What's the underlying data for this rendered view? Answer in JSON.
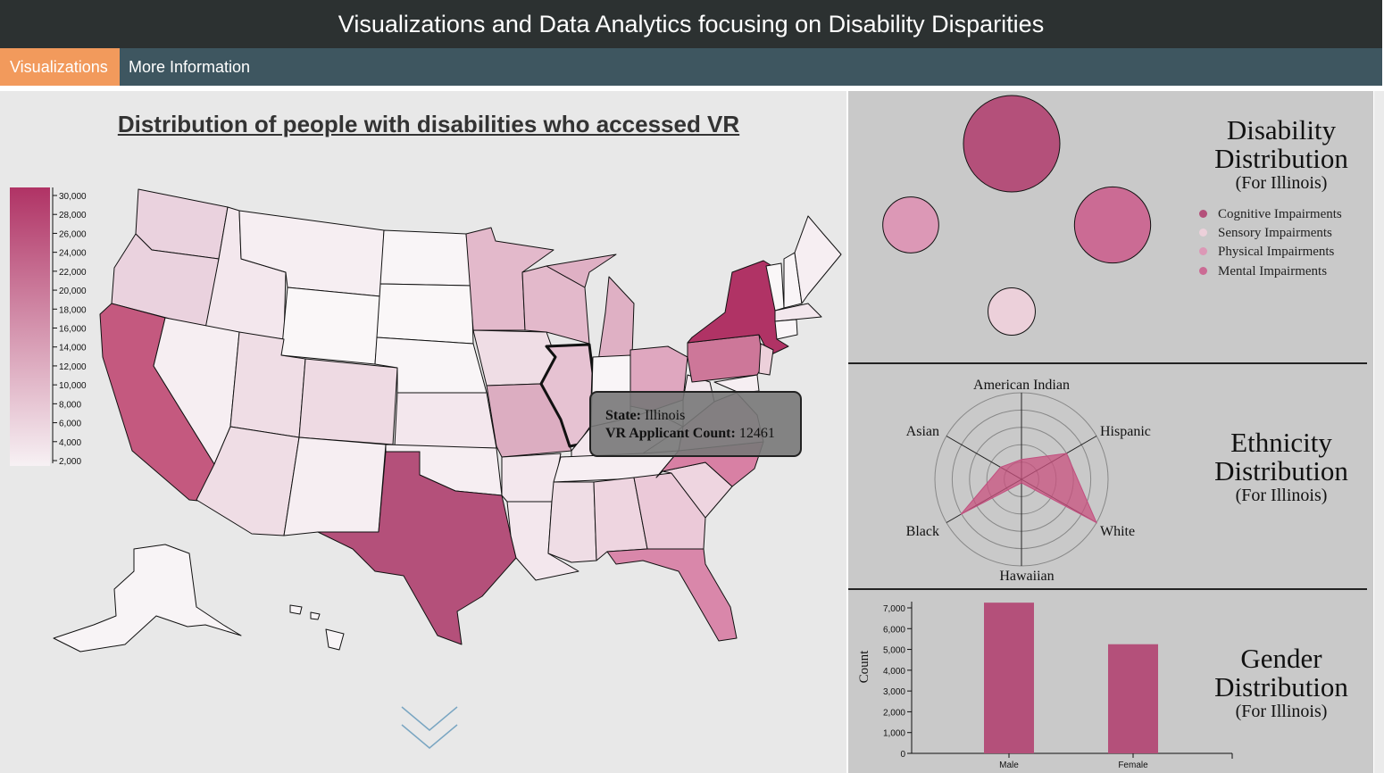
{
  "header": {
    "title": "Visualizations and Data Analytics focusing on Disability Disparities"
  },
  "nav": {
    "items": [
      {
        "label": "Visualizations",
        "active": true
      },
      {
        "label": "More Information",
        "active": false
      }
    ]
  },
  "map": {
    "title": "Distribution of people with disabilities who accessed VR",
    "legend_ticks": [
      "30,000",
      "28,000",
      "26,000",
      "24,000",
      "22,000",
      "20,000",
      "18,000",
      "16,000",
      "14,000",
      "12,000",
      "10,000",
      "8,000",
      "6,000",
      "4,000",
      "2,000"
    ],
    "tooltip": {
      "state_label": "State:",
      "state": "Illinois",
      "count_label": "VR Applicant Count:",
      "count": "12461"
    }
  },
  "disability": {
    "title": "Disability Distribution",
    "subtitle": "(For Illinois)",
    "legend": [
      {
        "label": "Cognitive Impairments",
        "color": "#b4507a"
      },
      {
        "label": "Sensory Impairments",
        "color": "#ecd0da"
      },
      {
        "label": "Physical Impairments",
        "color": "#dc98b6"
      },
      {
        "label": "Mental Impairments",
        "color": "#cb6b94"
      }
    ]
  },
  "ethnicity": {
    "title": "Ethnicity Distribution",
    "subtitle": "(For Illinois)",
    "axes": [
      "American Indian",
      "Hispanic",
      "White",
      "Hawaiian",
      "Black",
      "Asian"
    ]
  },
  "gender": {
    "title": "Gender Distribution",
    "subtitle": "(For Illinois)",
    "y_label": "Count",
    "y_ticks": [
      "0",
      "1,000",
      "2,000",
      "3,000",
      "4,000",
      "5,000",
      "6,000",
      "7,000"
    ]
  },
  "chart_data": [
    {
      "type": "bar",
      "title": "Gender Distribution (For Illinois)",
      "categories": [
        "Male",
        "Female"
      ],
      "values": [
        7250,
        5250
      ],
      "xlabel": "",
      "ylabel": "Count",
      "ylim": [
        0,
        7300
      ]
    },
    {
      "type": "radar",
      "title": "Ethnicity Distribution (For Illinois)",
      "axes": [
        "American Indian",
        "Hispanic",
        "White",
        "Hawaiian",
        "Black",
        "Asian"
      ],
      "values": [
        0.23,
        0.6,
        1.0,
        0.04,
        0.81,
        0.28
      ]
    },
    {
      "type": "bubble",
      "title": "Disability Distribution (For Illinois)",
      "categories": [
        "Cognitive Impairments",
        "Mental Impairments",
        "Physical Impairments",
        "Sensory Impairments"
      ],
      "values": [
        1.0,
        0.79,
        0.58,
        0.49
      ]
    }
  ]
}
